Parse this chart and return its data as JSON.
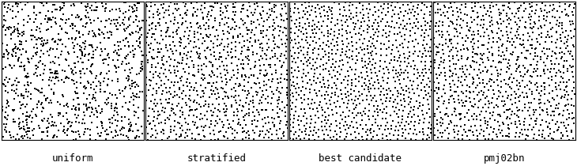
{
  "panels": [
    "uniform",
    "stratified",
    "best candidate",
    "pmj02bn"
  ],
  "n_points": 1024,
  "point_size": 1.5,
  "point_color": "#000000",
  "background_color": "#ffffff",
  "border_color": "#000000",
  "label_fontsize": 9,
  "label_font": "monospace",
  "seed": 42,
  "figsize": [
    7.3,
    2.1
  ],
  "dpi": 100
}
